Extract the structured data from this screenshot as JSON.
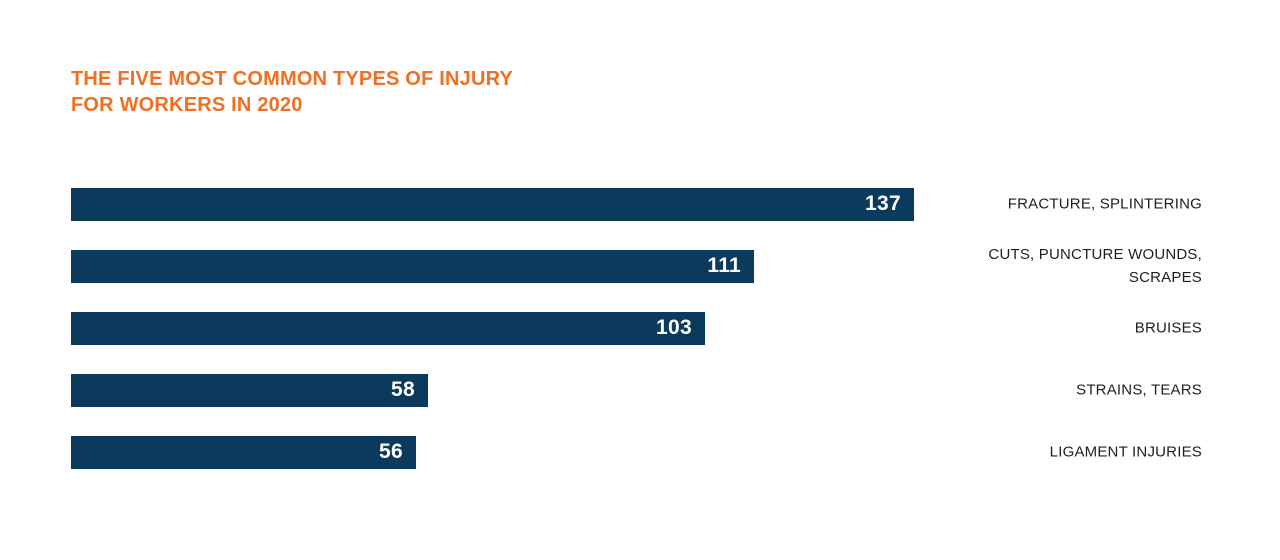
{
  "page": {
    "background": "#ffffff"
  },
  "chart_data": {
    "type": "bar",
    "orientation": "horizontal",
    "title": "THE FIVE MOST COMMON TYPES OF INJURY FOR WORKERS IN 2020",
    "title_lines": [
      "THE FIVE MOST COMMON TYPES OF INJURY",
      "FOR WORKERS IN 2020"
    ],
    "title_color": "#f26f21",
    "categories": [
      "FRACTURE, SPLINTERING",
      "CUTS, PUNCTURE WOUNDS,\nSCRAPES",
      "BRUISES",
      "STRAINS, TEARS",
      "LIGAMENT INJURIES"
    ],
    "values": [
      137,
      111,
      103,
      58,
      56
    ],
    "xlim": [
      0,
      137
    ],
    "bar_color": "#0c3a5c",
    "value_label_color": "#ffffff",
    "category_label_color": "#1f1f1f",
    "grid": false,
    "legend": false,
    "value_labels_position": "inside-end",
    "category_labels_position": "right"
  }
}
